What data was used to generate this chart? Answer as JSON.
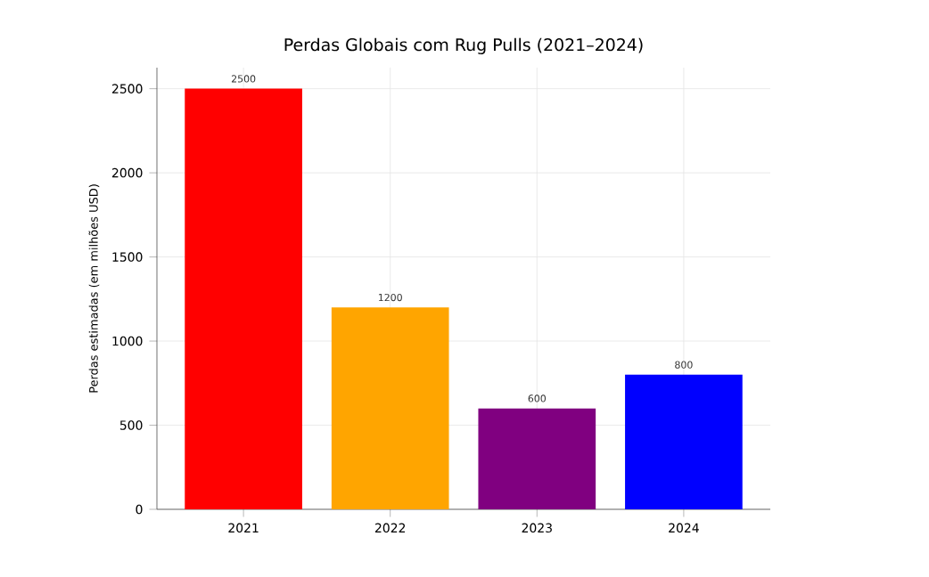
{
  "chart_data": {
    "type": "bar",
    "title": "Perdas Globais com Rug Pulls (2021–2024)",
    "ylabel": "Perdas estimadas (em milhões USD)",
    "categories": [
      "2021",
      "2022",
      "2023",
      "2024"
    ],
    "values": [
      2500,
      1200,
      600,
      800
    ],
    "colors": [
      "#ff0000",
      "#ffa500",
      "#800080",
      "#0000ff"
    ],
    "ylim": [
      0,
      2625
    ],
    "yticks": [
      0,
      500,
      1000,
      1500,
      2000,
      2500
    ],
    "grid": true,
    "data_labels": true
  }
}
